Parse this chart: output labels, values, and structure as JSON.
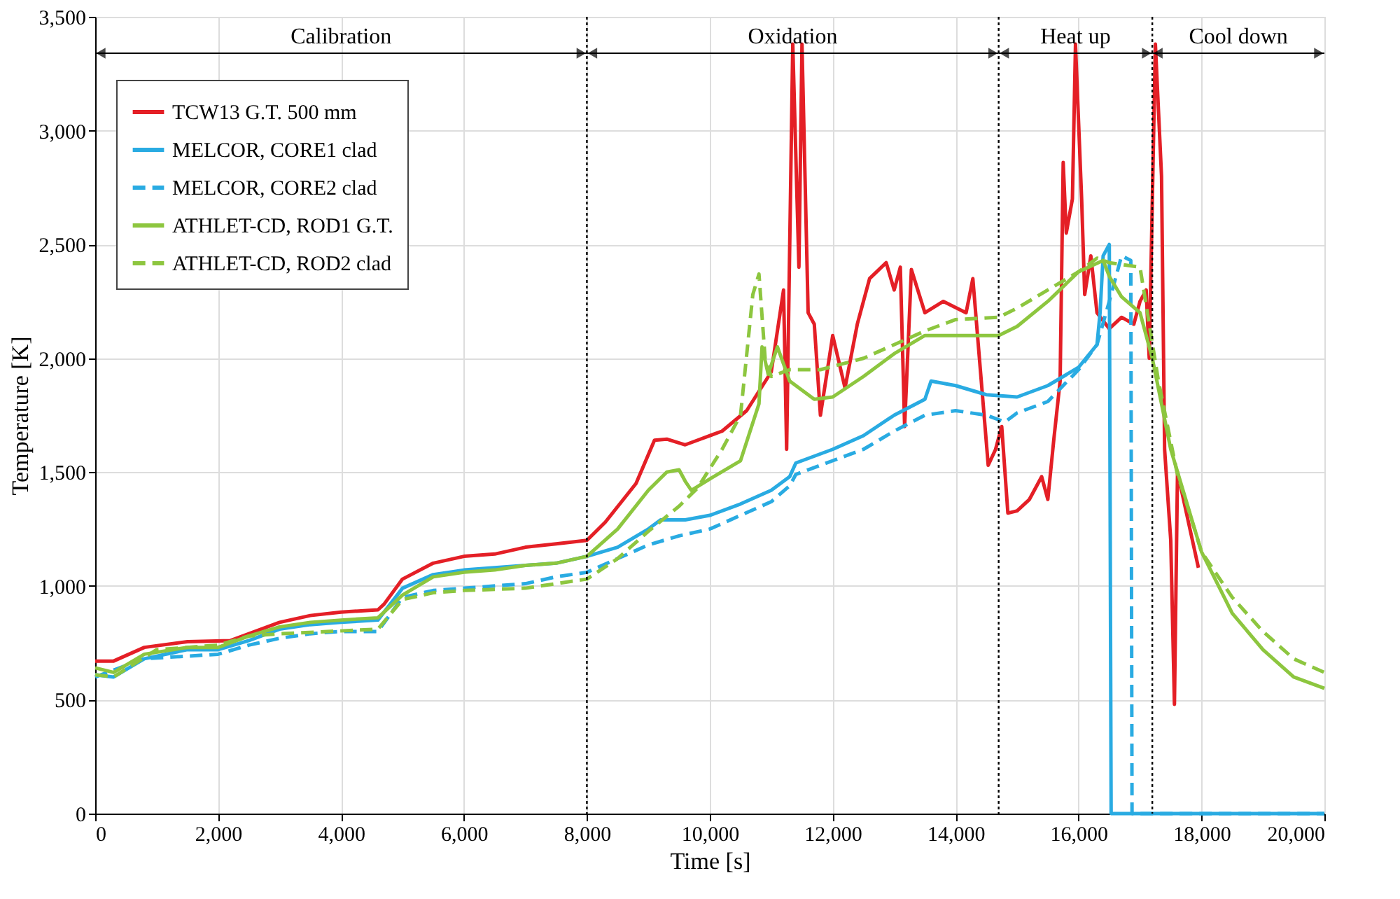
{
  "chart_data": {
    "type": "line",
    "xlabel": "Time [s]",
    "ylabel": "Temperature [K]",
    "xlim": [
      0,
      20000
    ],
    "ylim": [
      0,
      3500
    ],
    "xticks": [
      0,
      {
        "value": 2000,
        "label": "2,000"
      },
      {
        "value": 4000,
        "label": "4,000"
      },
      {
        "value": 6000,
        "label": "6,000"
      },
      {
        "value": 8000,
        "label": "8,000"
      },
      {
        "value": 10000,
        "label": "10,000"
      },
      {
        "value": 12000,
        "label": "12,000"
      },
      {
        "value": 14000,
        "label": "14,000"
      },
      {
        "value": 16000,
        "label": "16,000"
      },
      {
        "value": 18000,
        "label": "18,000"
      },
      {
        "value": 20000,
        "label": "20,000"
      }
    ],
    "yticks": [
      0,
      500,
      {
        "value": 1000,
        "label": "1,000"
      },
      {
        "value": 1500,
        "label": "1,500"
      },
      {
        "value": 2000,
        "label": "2,000"
      },
      {
        "value": 2500,
        "label": "2,500"
      },
      {
        "value": 3000,
        "label": "3,000"
      },
      {
        "value": 3500,
        "label": "3,500"
      }
    ],
    "grid": true,
    "legend": "top left",
    "marker": "none",
    "series": [
      {
        "name": "TCW13 G.T. 500 mm",
        "color": "#e41f26",
        "line_style": "solid",
        "x": [
          0,
          300,
          800,
          1500,
          2200,
          2500,
          3000,
          3500,
          4000,
          4600,
          4700,
          5000,
          5500,
          6000,
          6500,
          7000,
          7500,
          8000,
          8300,
          8800,
          9100,
          9300,
          9600,
          9800,
          10200,
          10600,
          11000,
          11200,
          11250,
          11350,
          11450,
          11500,
          11600,
          11700,
          11800,
          12000,
          12200,
          12400,
          12600,
          12870,
          13000,
          13100,
          13170,
          13280,
          13500,
          13800,
          14170,
          14280,
          14530,
          14650,
          14750,
          14850,
          15000,
          15200,
          15400,
          15500,
          15600,
          15700,
          15750,
          15800,
          15900,
          15950,
          16050,
          16100,
          16200,
          16300,
          16500,
          16700,
          16900,
          17000,
          17100,
          17150,
          17250,
          17350,
          17400,
          17500,
          17560,
          17610,
          17950
        ],
        "values": [
          670,
          670,
          730,
          755,
          760,
          790,
          840,
          870,
          885,
          895,
          920,
          1030,
          1100,
          1130,
          1140,
          1170,
          1185,
          1200,
          1280,
          1450,
          1640,
          1645,
          1620,
          1640,
          1680,
          1770,
          1940,
          2300,
          1600,
          3380,
          2400,
          3380,
          2200,
          2150,
          1750,
          2100,
          1870,
          2150,
          2350,
          2420,
          2300,
          2400,
          1700,
          2390,
          2200,
          2250,
          2200,
          2350,
          1530,
          1600,
          1700,
          1320,
          1330,
          1380,
          1480,
          1380,
          1650,
          1900,
          2860,
          2550,
          2700,
          3380,
          2700,
          2280,
          2450,
          2200,
          2130,
          2180,
          2150,
          2250,
          2300,
          2000,
          3380,
          2800,
          1600,
          1200,
          480,
          1500,
          1080
        ]
      },
      {
        "name": "MELCOR, CORE1 clad",
        "color": "#29abe2",
        "line_style": "solid",
        "x": [
          0,
          300,
          800,
          1500,
          2000,
          2500,
          3000,
          3500,
          4000,
          4600,
          5000,
          5500,
          6000,
          6500,
          7000,
          7500,
          8000,
          8500,
          9000,
          9200,
          9600,
          10000,
          10500,
          11000,
          11300,
          11400,
          12000,
          12500,
          13000,
          13500,
          13600,
          14000,
          14500,
          15000,
          15500,
          16000,
          16300,
          16350,
          16400,
          16500,
          16530,
          20000
        ],
        "values": [
          610,
          600,
          680,
          720,
          720,
          760,
          810,
          830,
          840,
          850,
          990,
          1050,
          1070,
          1080,
          1090,
          1100,
          1130,
          1170,
          1250,
          1290,
          1290,
          1310,
          1360,
          1420,
          1480,
          1540,
          1600,
          1660,
          1750,
          1820,
          1900,
          1880,
          1840,
          1830,
          1880,
          1960,
          2060,
          2200,
          2450,
          2500,
          0,
          0
        ]
      },
      {
        "name": "MELCOR, CORE2 clad",
        "color": "#29abe2",
        "line_style": "dashed",
        "x": [
          0,
          800,
          2000,
          2500,
          3000,
          3500,
          4000,
          4600,
          5000,
          5500,
          6000,
          7000,
          7500,
          8000,
          8500,
          9000,
          9500,
          10000,
          10500,
          11000,
          11300,
          11400,
          12000,
          12500,
          13000,
          13500,
          14000,
          14500,
          14800,
          15000,
          15500,
          16000,
          16300,
          16500,
          16700,
          16850,
          16870,
          20000
        ],
        "values": [
          600,
          680,
          700,
          740,
          770,
          790,
          800,
          800,
          950,
          980,
          990,
          1010,
          1040,
          1060,
          1120,
          1180,
          1220,
          1250,
          1310,
          1370,
          1440,
          1490,
          1550,
          1600,
          1680,
          1750,
          1770,
          1750,
          1720,
          1760,
          1810,
          1950,
          2060,
          2250,
          2450,
          2430,
          0,
          0
        ]
      },
      {
        "name": "ATHLET-CD, ROD1 G.T.",
        "color": "#8dc63f",
        "line_style": "solid",
        "x": [
          0,
          300,
          800,
          1500,
          2000,
          2500,
          3000,
          3500,
          4000,
          4600,
          5000,
          5500,
          6000,
          6500,
          7000,
          7500,
          8000,
          8500,
          9000,
          9300,
          9500,
          9600,
          9700,
          10000,
          10500,
          10800,
          10850,
          10950,
          11100,
          11300,
          11700,
          12000,
          12500,
          13000,
          13500,
          14000,
          14700,
          15000,
          15500,
          16000,
          16400,
          16500,
          16700,
          17000,
          17200,
          17500,
          18000,
          18500,
          19000,
          19500,
          20000
        ],
        "values": [
          640,
          620,
          700,
          730,
          730,
          780,
          820,
          840,
          850,
          860,
          960,
          1040,
          1060,
          1070,
          1090,
          1100,
          1130,
          1250,
          1420,
          1500,
          1510,
          1460,
          1420,
          1470,
          1550,
          1800,
          2050,
          1930,
          2050,
          1900,
          1820,
          1830,
          1920,
          2020,
          2100,
          2100,
          2100,
          2140,
          2250,
          2380,
          2430,
          2360,
          2270,
          2200,
          2000,
          1600,
          1150,
          880,
          720,
          600,
          550
        ]
      },
      {
        "name": "ATHLET-CD, ROD2 clad",
        "color": "#8dc63f",
        "line_style": "dashed",
        "x": [
          0,
          300,
          1000,
          2000,
          2500,
          3000,
          4600,
          5000,
          5500,
          6000,
          7000,
          8000,
          8500,
          9000,
          9500,
          9800,
          10200,
          10500,
          10700,
          10800,
          10900,
          11000,
          11300,
          11800,
          12500,
          13000,
          13500,
          14000,
          14700,
          15000,
          15500,
          16000,
          16300,
          16500,
          17000,
          17300,
          17600,
          18000,
          18500,
          19000,
          19500,
          20000
        ],
        "values": [
          610,
          600,
          720,
          740,
          780,
          790,
          810,
          940,
          970,
          980,
          990,
          1030,
          1120,
          1240,
          1350,
          1430,
          1600,
          1750,
          2280,
          2370,
          2000,
          1920,
          1950,
          1950,
          2000,
          2060,
          2120,
          2170,
          2180,
          2220,
          2300,
          2380,
          2440,
          2420,
          2400,
          1900,
          1500,
          1150,
          950,
          800,
          680,
          620
        ]
      }
    ],
    "ref_lines": [
      {
        "axis": "x",
        "value": 8000,
        "label": null,
        "line_style": "dotted"
      },
      {
        "axis": "x",
        "value": 14700,
        "label": null,
        "line_style": "dotted"
      },
      {
        "axis": "x",
        "value": 17200,
        "label": null,
        "line_style": "dotted"
      }
    ],
    "annotations": [
      "Calibration",
      "Oxidation",
      "Heat up",
      "Cool down"
    ]
  }
}
